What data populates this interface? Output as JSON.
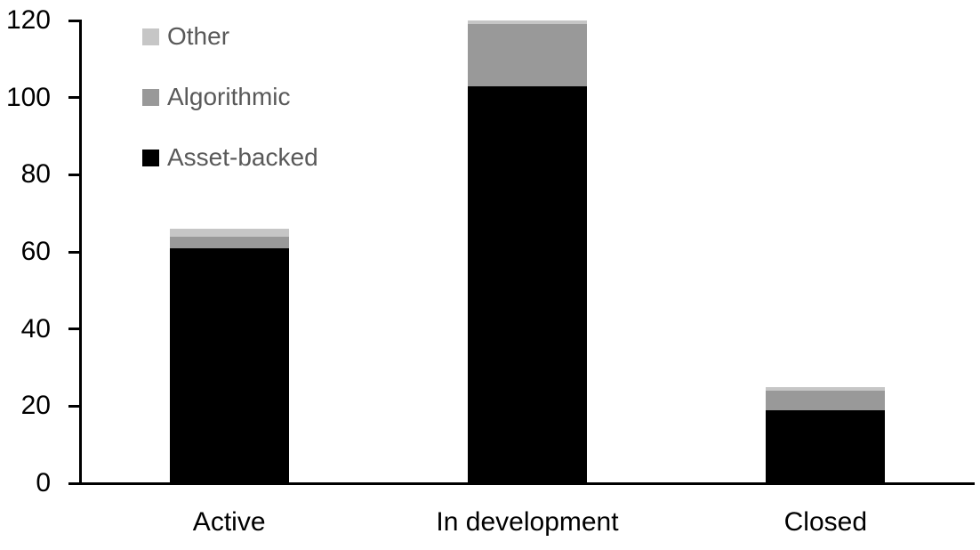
{
  "chart_data": {
    "type": "bar",
    "stacked": true,
    "title": "",
    "xlabel": "",
    "ylabel": "",
    "categories": [
      "Active",
      "In development",
      "Closed"
    ],
    "series": [
      {
        "name": "Asset-backed",
        "color": "#000000",
        "values": [
          61,
          103,
          19
        ]
      },
      {
        "name": "Algorithmic",
        "color": "#999999",
        "values": [
          3,
          16,
          5
        ]
      },
      {
        "name": "Other",
        "color": "#c6c6c6",
        "values": [
          2,
          1,
          1
        ]
      }
    ],
    "totals": [
      66,
      120,
      25
    ],
    "ylim": [
      0,
      120
    ],
    "yticks": [
      0,
      20,
      40,
      60,
      80,
      100,
      120
    ],
    "grid": false,
    "axis_color": "#000000",
    "label_color": "#000000",
    "background": "#ffffff",
    "legend": {
      "position": "inside-top-left",
      "order": [
        "Other",
        "Algorithmic",
        "Asset-backed"
      ],
      "text_color": "#595959"
    }
  }
}
